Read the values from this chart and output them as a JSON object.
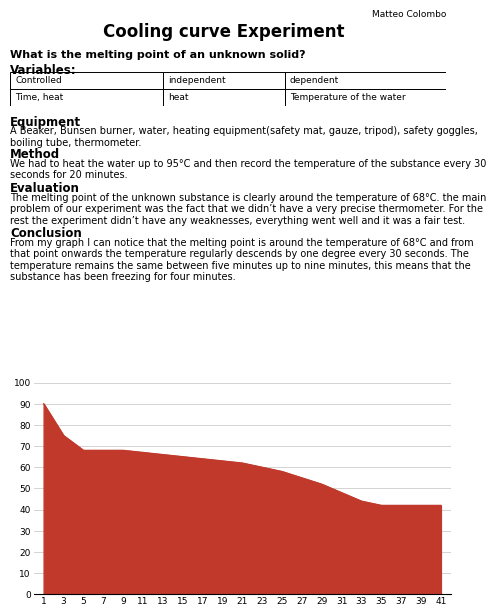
{
  "title": "Cooling curve Experiment",
  "author": "Matteo Colombo",
  "question": "What is the melting point of an unknown solid?",
  "variables_header": [
    "Controlled",
    "independent",
    "dependent"
  ],
  "variables_row": [
    "Time, heat",
    "heat",
    "Temperature of the water"
  ],
  "equipment_title": "Equipment",
  "equipment_text": "A Beaker, Bunsen burner, water, heating equipment(safety mat, gauze, tripod), safety goggles,\nboiling tube, thermometer.",
  "method_title": "Method",
  "method_text": "We had to heat the water up to 95°C and then record the temperature of the substance every 30\nseconds for 20 minutes.",
  "evaluation_title": "Evaluation",
  "evaluation_text": "The melting point of the unknown substance is clearly around the temperature of 68°C. the main\nproblem of our experiment was the fact that we didn’t have a very precise thermometer. For the\nrest the experiment didn’t have any weaknesses, everything went well and it was a fair test.",
  "conclusion_title": "Conclusion",
  "conclusion_text": "From my graph I can notice that the melting point is around the temperature of 68°C and from\nthat point onwards the temperature regularly descends by one degree every 30 seconds. The\ntemperature remains the same between five minutes up to nine minutes, this means that the\nsubstance has been freezing for four minutes.",
  "x_labels": [
    "1",
    "3",
    "5",
    "7",
    "9",
    "11",
    "13",
    "15",
    "17",
    "19",
    "21",
    "23",
    "25",
    "27",
    "29",
    "31",
    "33",
    "35",
    "37",
    "39",
    "41"
  ],
  "y_values": [
    90,
    75,
    68,
    68,
    68,
    67,
    66,
    65,
    64,
    63,
    62,
    60,
    58,
    55,
    52,
    48,
    44,
    42,
    42,
    42,
    42
  ],
  "fill_color": "#c0392b",
  "line_color": "#c0392b",
  "background_color": "#ffffff",
  "ylim": [
    0,
    100
  ],
  "yticks": [
    0,
    10,
    20,
    30,
    40,
    50,
    60,
    70,
    80,
    90,
    100
  ]
}
